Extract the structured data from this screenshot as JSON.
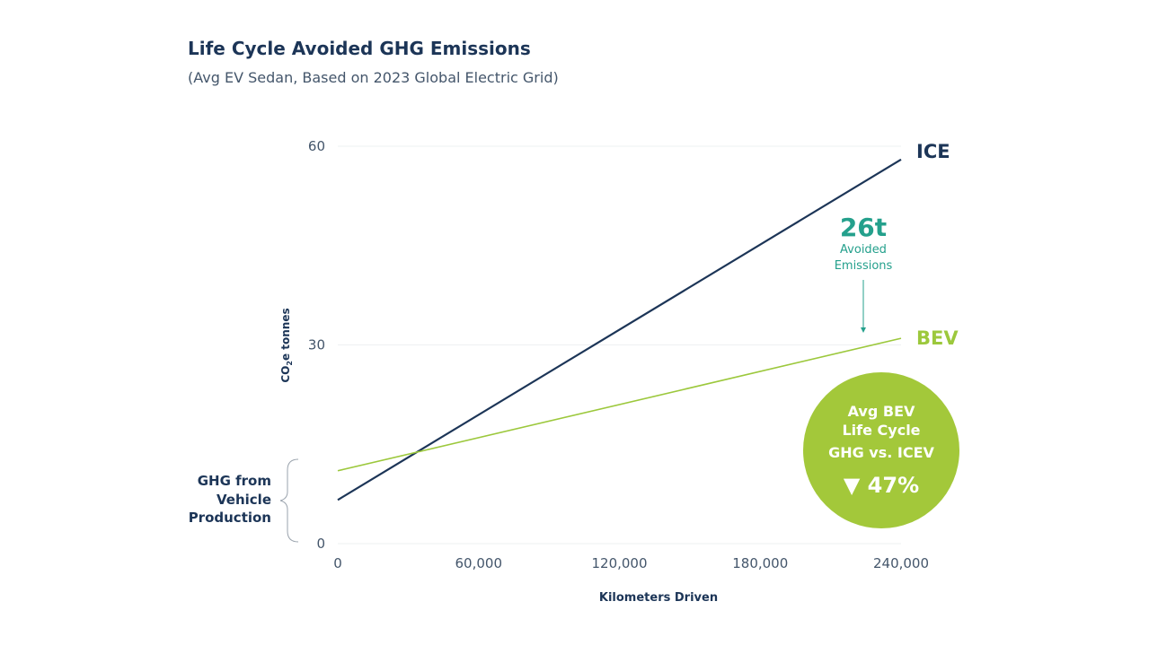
{
  "title": "Life Cycle Avoided GHG Emissions",
  "subtitle": "(Avg EV Sedan, Based on 2023 Global Electric Grid)",
  "chart_data": {
    "type": "line",
    "title": "Life Cycle Avoided GHG Emissions",
    "subtitle": "(Avg EV Sedan, Based on 2023 Global Electric Grid)",
    "xlabel": "Kilometers Driven",
    "ylabel_parts": [
      "CO",
      "2",
      "e tonnes"
    ],
    "xlim": [
      0,
      240000
    ],
    "ylim": [
      0,
      60
    ],
    "x_ticks": [
      "0",
      "60,000",
      "120,000",
      "180,000",
      "240,000"
    ],
    "x_tick_values": [
      0,
      60000,
      120000,
      180000,
      240000
    ],
    "y_ticks": [
      "0",
      "30",
      "60"
    ],
    "y_tick_values": [
      0,
      30,
      60
    ],
    "grid": "horizontal",
    "series": [
      {
        "name": "ICE",
        "color": "#1c3557",
        "x": [
          0,
          240000
        ],
        "y": [
          6.6,
          58
        ]
      },
      {
        "name": "BEV",
        "color": "#9cc83c",
        "x": [
          0,
          240000
        ],
        "y": [
          11,
          31
        ]
      }
    ],
    "annotations": {
      "avoided_value": "26t",
      "avoided_label_1": "Avoided",
      "avoided_label_2": "Emissions",
      "production_label": [
        "GHG from",
        "Vehicle",
        "Production"
      ],
      "badge_lines": [
        "Avg BEV",
        "Life Cycle",
        "GHG vs. ICEV"
      ],
      "badge_value": "▼ 47%"
    },
    "colors": {
      "ice": "#1c3557",
      "bev": "#9cc83c",
      "accent": "#24a08c",
      "grid": "#eef0f2"
    }
  }
}
